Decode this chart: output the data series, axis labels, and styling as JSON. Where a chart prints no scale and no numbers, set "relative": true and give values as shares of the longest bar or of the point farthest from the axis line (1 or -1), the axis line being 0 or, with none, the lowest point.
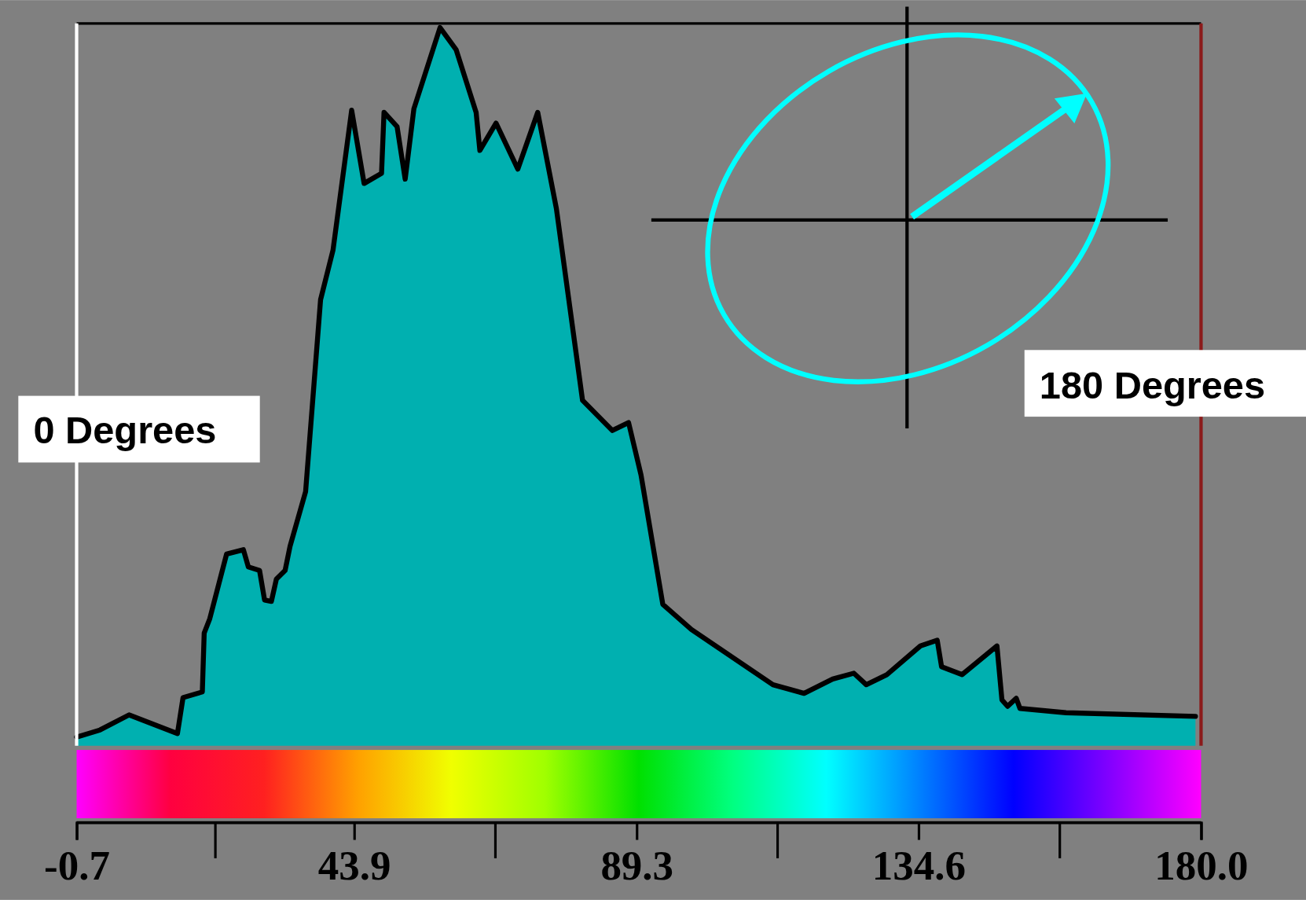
{
  "chart_data": {
    "type": "area",
    "relative": true,
    "color": "#00b0b0",
    "x": [
      -0.7,
      3.05,
      7.73,
      15.5,
      16.4,
      19.5,
      19.8,
      20.7,
      23.4,
      26.1,
      26.9,
      28.7,
      29.5,
      30.6,
      31.4,
      32.8,
      33.6,
      36.1,
      38.5,
      40.5,
      43.5,
      45.5,
      48.3,
      48.7,
      50.8,
      52.1,
      53.5,
      57.7,
      60.3,
      63.5,
      64.1,
      66.7,
      70.2,
      73.4,
      76.4,
      80.6,
      85.4,
      88.0,
      90.0,
      93.5,
      98.1,
      111.2,
      116.2,
      120.8,
      124.2,
      126.2,
      129.5,
      134.9,
      137.6,
      138.3,
      141.6,
      147.2,
      148.0,
      148.9,
      150.3,
      150.9,
      158.3,
      179.1
    ],
    "values": [
      0.012,
      0.022,
      0.043,
      0.017,
      0.067,
      0.075,
      0.157,
      0.177,
      0.267,
      0.273,
      0.249,
      0.244,
      0.203,
      0.201,
      0.232,
      0.244,
      0.278,
      0.354,
      0.621,
      0.69,
      0.885,
      0.783,
      0.797,
      0.882,
      0.862,
      0.789,
      0.887,
      1,
      0.969,
      0.882,
      0.829,
      0.867,
      0.803,
      0.882,
      0.748,
      0.481,
      0.439,
      0.45,
      0.377,
      0.197,
      0.162,
      0.085,
      0.073,
      0.093,
      0.101,
      0.085,
      0.099,
      0.139,
      0.147,
      0.11,
      0.099,
      0.139,
      0.064,
      0.055,
      0.066,
      0.052,
      0.046,
      0.041
    ],
    "xlim": [
      -0.7,
      180.0
    ],
    "xticks": [
      -0.7,
      43.9,
      89.3,
      134.6,
      {
        "value": 180.0,
        "label": "180.0"
      }
    ],
    "annotations": [
      "0 Degrees",
      "180 Degrees"
    ]
  }
}
